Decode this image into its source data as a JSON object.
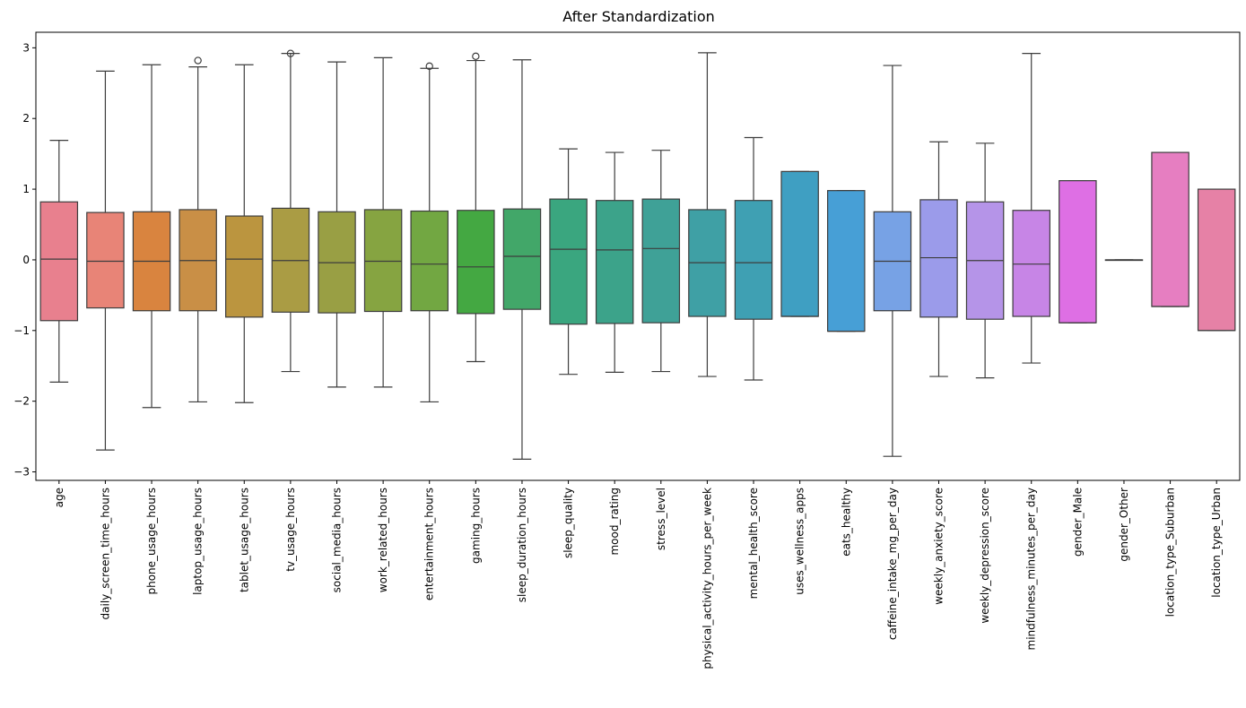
{
  "chart_data": {
    "type": "box",
    "title": "After Standardization",
    "xlabel": "",
    "ylabel": "",
    "ylim": [
      -3.12,
      3.22
    ],
    "yticks": [
      -3,
      -2,
      -1,
      0,
      1,
      2,
      3
    ],
    "ytick_labels": [
      "−3",
      "−2",
      "−1",
      "0",
      "1",
      "2",
      "3"
    ],
    "grid": false,
    "legend": "none",
    "categories": [
      "age",
      "daily_screen_time_hours",
      "phone_usage_hours",
      "laptop_usage_hours",
      "tablet_usage_hours",
      "tv_usage_hours",
      "social_media_hours",
      "work_related_hours",
      "entertainment_hours",
      "gaming_hours",
      "sleep_duration_hours",
      "sleep_quality",
      "mood_rating",
      "stress_level",
      "physical_activity_hours_per_week",
      "mental_health_score",
      "uses_wellness_apps",
      "eats_healthy",
      "caffeine_intake_mg_per_day",
      "weekly_anxiety_score",
      "weekly_depression_score",
      "mindfulness_minutes_per_day",
      "gender_Male",
      "gender_Other",
      "location_type_Suburban",
      "location_type_Urban"
    ],
    "boxes": [
      {
        "whisker_low": -1.73,
        "q1": -0.86,
        "median": 0.01,
        "q3": 0.82,
        "whisker_high": 1.69,
        "outliers": [],
        "color": "#e8808e"
      },
      {
        "whisker_low": -2.69,
        "q1": -0.68,
        "median": -0.02,
        "q3": 0.67,
        "whisker_high": 2.67,
        "outliers": [],
        "color": "#e88477"
      },
      {
        "whisker_low": -2.09,
        "q1": -0.72,
        "median": -0.02,
        "q3": 0.68,
        "whisker_high": 2.76,
        "outliers": [],
        "color": "#d9843f"
      },
      {
        "whisker_low": -2.01,
        "q1": -0.72,
        "median": -0.01,
        "q3": 0.71,
        "whisker_high": 2.73,
        "outliers": [
          2.82
        ],
        "color": "#c98f46"
      },
      {
        "whisker_low": -2.02,
        "q1": -0.81,
        "median": 0.01,
        "q3": 0.62,
        "whisker_high": 2.76,
        "outliers": [],
        "color": "#bb953f"
      },
      {
        "whisker_low": -1.58,
        "q1": -0.74,
        "median": -0.01,
        "q3": 0.73,
        "whisker_high": 2.92,
        "outliers": [
          2.92
        ],
        "color": "#aa9c44"
      },
      {
        "whisker_low": -1.8,
        "q1": -0.75,
        "median": -0.04,
        "q3": 0.68,
        "whisker_high": 2.8,
        "outliers": [],
        "color": "#999f44"
      },
      {
        "whisker_low": -1.8,
        "q1": -0.73,
        "median": -0.02,
        "q3": 0.71,
        "whisker_high": 2.86,
        "outliers": [],
        "color": "#86a441"
      },
      {
        "whisker_low": -2.01,
        "q1": -0.72,
        "median": -0.06,
        "q3": 0.69,
        "whisker_high": 2.71,
        "outliers": [
          2.74
        ],
        "color": "#72a742"
      },
      {
        "whisker_low": -1.44,
        "q1": -0.76,
        "median": -0.1,
        "q3": 0.7,
        "whisker_high": 2.82,
        "outliers": [
          2.88
        ],
        "color": "#44a842"
      },
      {
        "whisker_low": -2.82,
        "q1": -0.7,
        "median": 0.05,
        "q3": 0.72,
        "whisker_high": 2.83,
        "outliers": [],
        "color": "#42a769"
      },
      {
        "whisker_low": -1.62,
        "q1": -0.91,
        "median": 0.15,
        "q3": 0.86,
        "whisker_high": 1.57,
        "outliers": [],
        "color": "#3aa67f"
      },
      {
        "whisker_low": -1.59,
        "q1": -0.9,
        "median": 0.14,
        "q3": 0.84,
        "whisker_high": 1.52,
        "outliers": [],
        "color": "#3ca38a"
      },
      {
        "whisker_low": -1.58,
        "q1": -0.89,
        "median": 0.16,
        "q3": 0.86,
        "whisker_high": 1.55,
        "outliers": [],
        "color": "#3fa197"
      },
      {
        "whisker_low": -1.65,
        "q1": -0.8,
        "median": -0.04,
        "q3": 0.71,
        "whisker_high": 2.93,
        "outliers": [],
        "color": "#3fa0a5"
      },
      {
        "whisker_low": -1.7,
        "q1": -0.84,
        "median": -0.04,
        "q3": 0.84,
        "whisker_high": 1.73,
        "outliers": [],
        "color": "#3fa0b3"
      },
      {
        "whisker_low": -0.8,
        "q1": -0.8,
        "median": -0.8,
        "q3": 1.25,
        "whisker_high": 1.25,
        "outliers": [],
        "color": "#3f9fc2"
      },
      {
        "whisker_low": -1.01,
        "q1": -1.01,
        "median": -1.01,
        "q3": 0.98,
        "whisker_high": 0.98,
        "outliers": [],
        "color": "#479fd6"
      },
      {
        "whisker_low": -2.78,
        "q1": -0.72,
        "median": -0.02,
        "q3": 0.68,
        "whisker_high": 2.75,
        "outliers": [],
        "color": "#77a2e5"
      },
      {
        "whisker_low": -1.65,
        "q1": -0.81,
        "median": 0.03,
        "q3": 0.85,
        "whisker_high": 1.67,
        "outliers": [],
        "color": "#9b9bea"
      },
      {
        "whisker_low": -1.67,
        "q1": -0.84,
        "median": -0.01,
        "q3": 0.82,
        "whisker_high": 1.65,
        "outliers": [],
        "color": "#b594e8"
      },
      {
        "whisker_low": -1.46,
        "q1": -0.8,
        "median": -0.06,
        "q3": 0.7,
        "whisker_high": 2.92,
        "outliers": [],
        "color": "#c785e6"
      },
      {
        "whisker_low": -0.89,
        "q1": -0.89,
        "median": -0.89,
        "q3": 1.12,
        "whisker_high": 1.12,
        "outliers": [],
        "color": "#de6fe4"
      },
      {
        "whisker_low": 0.0,
        "q1": 0.0,
        "median": 0.0,
        "q3": 0.0,
        "whisker_high": 0.0,
        "outliers": [],
        "color": "#e57ad5"
      },
      {
        "whisker_low": -0.66,
        "q1": -0.66,
        "median": -0.66,
        "q3": 1.52,
        "whisker_high": 1.52,
        "outliers": [],
        "color": "#e67ec1"
      },
      {
        "whisker_low": -1.0,
        "q1": -1.0,
        "median": -1.0,
        "q3": 1.0,
        "whisker_high": 1.0,
        "outliers": [],
        "color": "#e681a6"
      }
    ]
  }
}
